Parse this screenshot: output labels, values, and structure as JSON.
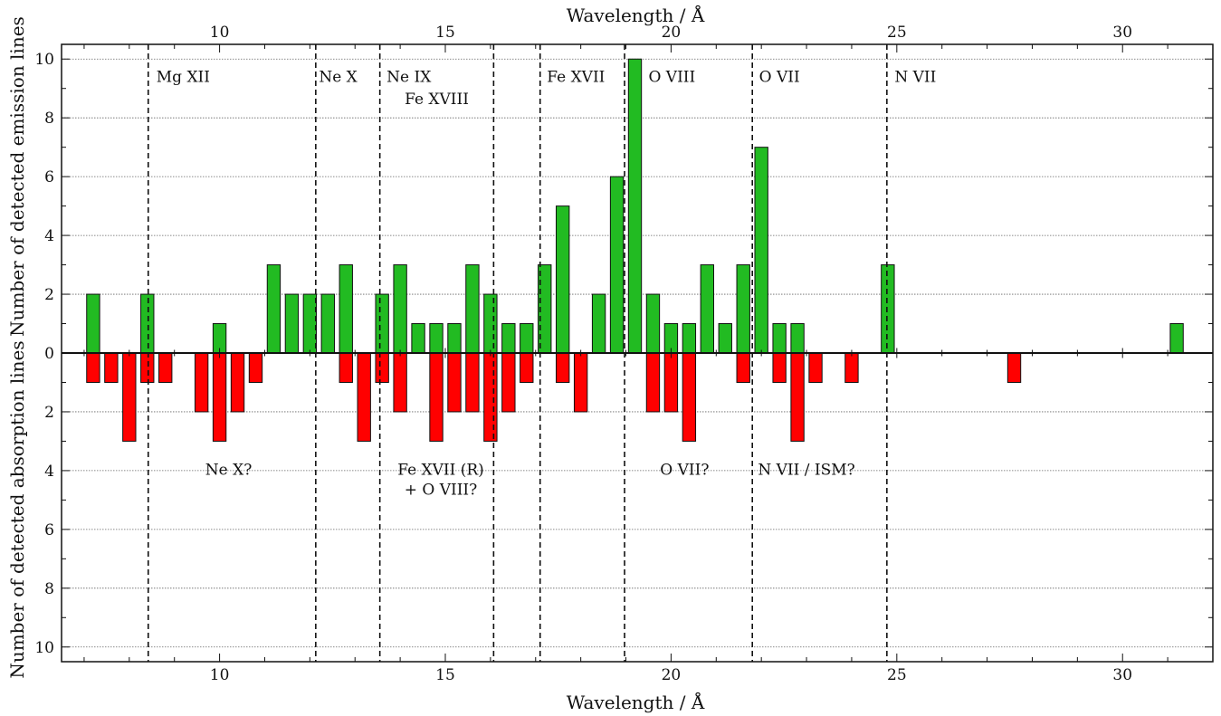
{
  "chart_data": {
    "type": "bar",
    "xlabel_top": "Wavelength / Å",
    "xlabel_bottom": "Wavelength / Å",
    "ylabel_upper": "Number of detected emission lines",
    "ylabel_lower": "Number of detected absorption lines",
    "xlim": [
      6.5,
      32.0
    ],
    "ylim": [
      -10.5,
      10.5
    ],
    "x_ticks": [
      10,
      15,
      20,
      25,
      30
    ],
    "y_ticks": [
      -10,
      -8,
      -6,
      -4,
      -2,
      0,
      2,
      4,
      6,
      8,
      10
    ],
    "bin_width": 0.4,
    "grid": true,
    "series": [
      {
        "name": "emission",
        "color": "#22bb22",
        "x": [
          7.2,
          8.4,
          10.0,
          11.2,
          11.6,
          12.0,
          12.4,
          12.8,
          13.6,
          14.0,
          14.4,
          14.8,
          15.2,
          15.6,
          16.0,
          16.4,
          16.8,
          17.2,
          17.6,
          18.4,
          18.8,
          19.2,
          19.6,
          20.0,
          20.4,
          20.8,
          21.2,
          21.6,
          22.0,
          22.4,
          22.8,
          24.8,
          31.2
        ],
        "values": [
          2,
          2,
          1,
          3,
          2,
          2,
          2,
          3,
          2,
          3,
          1,
          1,
          1,
          3,
          2,
          1,
          1,
          3,
          5,
          2,
          6,
          10,
          2,
          1,
          1,
          3,
          1,
          3,
          7,
          1,
          1,
          3,
          1
        ]
      },
      {
        "name": "absorption",
        "color": "#ff0000",
        "x": [
          7.2,
          7.6,
          8.0,
          8.4,
          8.8,
          9.6,
          10.0,
          10.4,
          10.8,
          12.8,
          13.2,
          13.6,
          14.0,
          14.8,
          15.2,
          15.6,
          16.0,
          16.4,
          16.8,
          17.6,
          18.0,
          19.6,
          20.0,
          20.4,
          21.6,
          22.4,
          22.8,
          23.2,
          24.0,
          27.6
        ],
        "values": [
          1,
          1,
          3,
          1,
          1,
          2,
          3,
          2,
          1,
          1,
          3,
          1,
          2,
          3,
          2,
          2,
          3,
          2,
          1,
          1,
          2,
          2,
          2,
          3,
          1,
          1,
          3,
          1,
          1,
          1
        ]
      }
    ],
    "reference_lines": [
      {
        "x": 8.42,
        "label": "Mg XII",
        "label_x": 8.6,
        "label_y": 9.4
      },
      {
        "x": 12.13,
        "label": "Ne X",
        "label_x": 12.2,
        "label_y": 9.4
      },
      {
        "x": 13.55,
        "label": "Ne IX",
        "label_x": 13.7,
        "label_y": 9.4
      },
      {
        "x": 16.07,
        "label": "Fe XVIII",
        "label_x": 14.1,
        "label_y": 8.65
      },
      {
        "x": 17.1,
        "label": "Fe XVII",
        "label_x": 17.25,
        "label_y": 9.4
      },
      {
        "x": 18.97,
        "label": "O VIII",
        "label_x": 19.5,
        "label_y": 9.4
      },
      {
        "x": 21.8,
        "label": "O VII",
        "label_x": 21.95,
        "label_y": 9.4
      },
      {
        "x": 24.78,
        "label": "N VII",
        "label_x": 24.95,
        "label_y": 9.4
      }
    ],
    "absorption_annotations": [
      {
        "lines": [
          "Ne X?"
        ],
        "x": 10.2,
        "y": -3.95
      },
      {
        "lines": [
          "Fe XVII (R)",
          "+ O VIII?"
        ],
        "x": 14.9,
        "y": -3.95
      },
      {
        "lines": [
          "O VII?"
        ],
        "x": 20.3,
        "y": -3.95
      },
      {
        "lines": [
          "N VII / ISM?"
        ],
        "x": 23.0,
        "y": -3.95
      }
    ]
  }
}
